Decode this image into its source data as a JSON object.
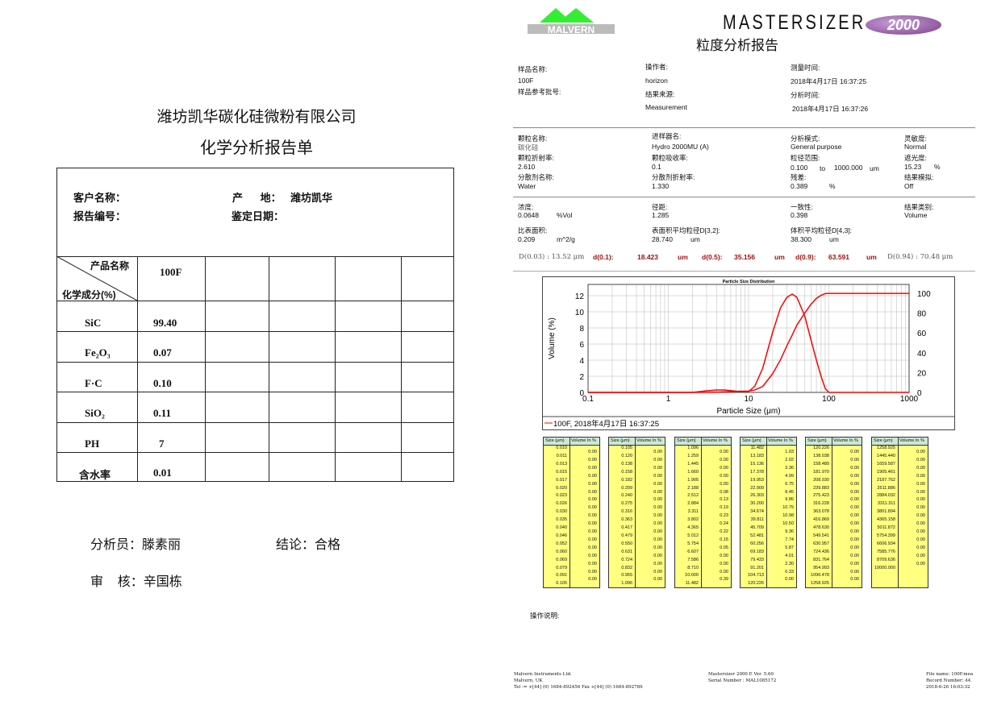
{
  "left": {
    "company": "潍坊凯华碳化硅微粉有限公司",
    "title": "化学分析报告单",
    "customer_label": "客户名称：",
    "origin_label": "产      地：",
    "origin_value": "潍坊凯华",
    "report_no_label": "报告编号：",
    "date_label": "鉴定日期：",
    "corner_top": "产品名称",
    "corner_bottom": "化学成分(%)",
    "product": "100F",
    "rows": [
      {
        "name": "SiC",
        "value": "99.40"
      },
      {
        "name": "Fe₂O₃",
        "value": "0.07"
      },
      {
        "name": "F·C",
        "value": "0.10"
      },
      {
        "name": "SiO₂",
        "value": "0.11"
      },
      {
        "name": "PH",
        "value": "7"
      },
      {
        "name": "含水率",
        "value": "0.01"
      }
    ],
    "analyst": "分析员：滕素丽",
    "conclusion": "结论：合格",
    "reviewer": "审    核：辛国栋"
  },
  "right": {
    "logo_text": "MALVERN",
    "brand": "MASTERSIZER",
    "brand_badge": "2000",
    "title": "粒度分析报告",
    "sample_name_label": "样品名称:",
    "sample_name": "100F",
    "sample_ref_label": "样品参考批号:",
    "operator_label": "操作者:",
    "operator": "horizon",
    "source_label": "结果来源:",
    "source": "Measurement",
    "measure_time_label": "测量时间:",
    "measure_time": "2018年4月17日 16:37:25",
    "analysis_time_label": "分析时间:",
    "analysis_time": "2018年4月17日 16:37:26",
    "particle_name_label": "颗粒名称:",
    "particle_name": "碳化硅",
    "particle_ri_label": "颗粒折射率:",
    "particle_ri": "2.610",
    "dispersant_label": "分散剂名称:",
    "dispersant": "Water",
    "accessory_label": "进样器名:",
    "accessory": "Hydro 2000MU (A)",
    "absorption_label": "颗粒吸收率:",
    "absorption": "0.1",
    "dispersant_ri_label": "分散剂折射率:",
    "dispersant_ri": "1.330",
    "model_label": "分析模式:",
    "model": "General purpose",
    "range_label": "粒径范围:",
    "range_from": "0.100",
    "range_to_word": "to",
    "range_to": "1000.000",
    "range_unit": "um",
    "residual_label": "残差:",
    "residual": "0.389",
    "residual_unit": "%",
    "sensitivity_label": "灵敏度:",
    "sensitivity": "Normal",
    "obscuration_label": "遮光度:",
    "obscuration": "15.23",
    "obscuration_unit": "%",
    "emulation_label": "结果模拟:",
    "emulation": "Off",
    "concentration_label": "浓度:",
    "concentration": "0.0648",
    "concentration_unit": "%Vol",
    "span_label": "径距:",
    "span": "1.285",
    "uniformity_label": "一致性:",
    "uniformity": "0.398",
    "result_units_label": "结果类别:",
    "result_units": "Volume",
    "ssa_label": "比表面积:",
    "ssa": "0.209",
    "ssa_unit": "m^2/g",
    "d32_label": "表面积平均粒径D[3,2]:",
    "d32": "28.740",
    "d32_unit": "um",
    "d43_label": "体积平均粒径D[4,3]:",
    "d43": "38.300",
    "d43_unit": "um",
    "d003": "D(0.03) : 13.52 μm",
    "d01_label": "d(0.1):",
    "d01": "18.423",
    "d05_label": "d(0.5):",
    "d05": "35.156",
    "d09_label": "d(0.9):",
    "d09": "63.591",
    "d_unit": "um",
    "d094": "D(0.94) : 70.48 μm",
    "notes_label": "操作说明:",
    "footer_left": "Malvern Instruments Ltd.\nMalvern, UK\nTel := +[44] (0) 1684-892456 Fax +[44] (0) 1684-892789",
    "footer_mid": "Mastersizer 2000 E Ver. 5.60\nSerial Number : MAL1085172",
    "footer_right": "File name: 100F.mea\nRecord Number: 44\n2018-6-26 16:03:32",
    "table_headers": [
      "Size (μm)",
      "Volume In %"
    ],
    "tables": [
      {
        "sizes": [
          "0.010",
          "0.011",
          "0.013",
          "0.015",
          "0.017",
          "0.020",
          "0.023",
          "0.026",
          "0.030",
          "0.035",
          "0.040",
          "0.046",
          "0.052",
          "0.060",
          "0.069",
          "0.079",
          "0.091",
          "0.105"
        ],
        "volumes": [
          "0.00",
          "0.00",
          "0.00",
          "0.00",
          "0.00",
          "0.00",
          "0.00",
          "0.00",
          "0.00",
          "0.00",
          "0.00",
          "0.00",
          "0.00",
          "0.00",
          "0.00",
          "0.00",
          "0.00"
        ]
      },
      {
        "sizes": [
          "0.105",
          "0.120",
          "0.138",
          "0.158",
          "0.182",
          "0.209",
          "0.240",
          "0.275",
          "0.316",
          "0.363",
          "0.417",
          "0.479",
          "0.550",
          "0.631",
          "0.724",
          "0.832",
          "0.955",
          "1.096"
        ],
        "volumes": [
          "0.00",
          "0.00",
          "0.00",
          "0.00",
          "0.00",
          "0.00",
          "0.00",
          "0.00",
          "0.00",
          "0.00",
          "0.00",
          "0.00",
          "0.00",
          "0.00",
          "0.00",
          "0.00",
          "0.00"
        ]
      },
      {
        "sizes": [
          "1.096",
          "1.259",
          "1.445",
          "1.660",
          "1.905",
          "2.188",
          "2.512",
          "2.884",
          "3.311",
          "3.802",
          "4.365",
          "5.012",
          "5.754",
          "6.607",
          "7.586",
          "8.710",
          "10.000",
          "11.482"
        ],
        "volumes": [
          "0.00",
          "0.00",
          "0.00",
          "0.00",
          "0.00",
          "0.08",
          "0.13",
          "0.19",
          "0.23",
          "0.24",
          "0.22",
          "0.15",
          "0.05",
          "0.00",
          "0.00",
          "0.00",
          "0.39"
        ]
      },
      {
        "sizes": [
          "11.482",
          "13.183",
          "15.136",
          "17.378",
          "19.953",
          "22.909",
          "26.303",
          "30.200",
          "34.674",
          "39.811",
          "45.709",
          "52.481",
          "60.256",
          "69.183",
          "79.433",
          "91.201",
          "104.713",
          "120.226"
        ],
        "volumes": [
          "1.03",
          "2.02",
          "3.36",
          "4.99",
          "6.75",
          "8.45",
          "9.86",
          "10.75",
          "10.98",
          "10.50",
          "9.36",
          "7.74",
          "5.87",
          "4.01",
          "2.30",
          "0.33",
          "0.00"
        ]
      },
      {
        "sizes": [
          "120.226",
          "138.038",
          "158.489",
          "181.970",
          "208.930",
          "239.883",
          "275.423",
          "316.228",
          "363.078",
          "416.869",
          "478.630",
          "549.541",
          "630.957",
          "724.436",
          "831.764",
          "954.993",
          "1096.478",
          "1258.925"
        ],
        "volumes": [
          "0.00",
          "0.00",
          "0.00",
          "0.00",
          "0.00",
          "0.00",
          "0.00",
          "0.00",
          "0.00",
          "0.00",
          "0.00",
          "0.00",
          "0.00",
          "0.00",
          "0.00",
          "0.00",
          "0.00"
        ]
      },
      {
        "sizes": [
          "1258.925",
          "1445.440",
          "1659.587",
          "1905.461",
          "2187.762",
          "2511.886",
          "2884.032",
          "3311.311",
          "3801.894",
          "4365.158",
          "5011.872",
          "5754.399",
          "6606.934",
          "7585.776",
          "8709.636",
          "10000.000"
        ],
        "volumes": [
          "0.00",
          "0.00",
          "0.00",
          "0.00",
          "0.00",
          "0.00",
          "0.00",
          "0.00",
          "0.00",
          "0.00",
          "0.00",
          "0.00",
          "0.00",
          "0.00",
          "0.00"
        ]
      }
    ]
  },
  "chart_data": {
    "type": "line",
    "title": "Particle Size Distribution",
    "xlabel": "Particle Size (μm)",
    "ylabel": "Volume (%)",
    "x_scale": "log",
    "xlim": [
      0.1,
      1000
    ],
    "x_ticks": [
      "0.1",
      "1",
      "10",
      "100",
      "1000"
    ],
    "ylim": [
      0,
      13.4
    ],
    "y_ticks": [
      "0",
      "2",
      "4",
      "6",
      "8",
      "10",
      "12"
    ],
    "y2lim": [
      0,
      109
    ],
    "y2_ticks": [
      "0",
      "20",
      "40",
      "60",
      "80",
      "100"
    ],
    "grid": true,
    "legend": "bottom",
    "legend_label": "100F, 2018年4月17日 16:37:25",
    "color": "#ff0000",
    "x": [
      0.1,
      2,
      3,
      4,
      5,
      7,
      10,
      12,
      15,
      20,
      25,
      30,
      35,
      40,
      50,
      60,
      70,
      80,
      90,
      100,
      1000
    ],
    "series": [
      {
        "axis": "left",
        "values": [
          0,
          0,
          0.2,
          0.3,
          0.3,
          0.15,
          0.1,
          0.8,
          3,
          7.5,
          10.5,
          11.8,
          12.2,
          11.8,
          9.5,
          6.5,
          4,
          2,
          0.5,
          0,
          0
        ]
      },
      {
        "axis": "right",
        "values": [
          0,
          0,
          0.1,
          0.3,
          0.6,
          1,
          1.3,
          2.5,
          6,
          19,
          33,
          47,
          58,
          68,
          80,
          89,
          95,
          98,
          99.7,
          100,
          100
        ]
      }
    ]
  }
}
